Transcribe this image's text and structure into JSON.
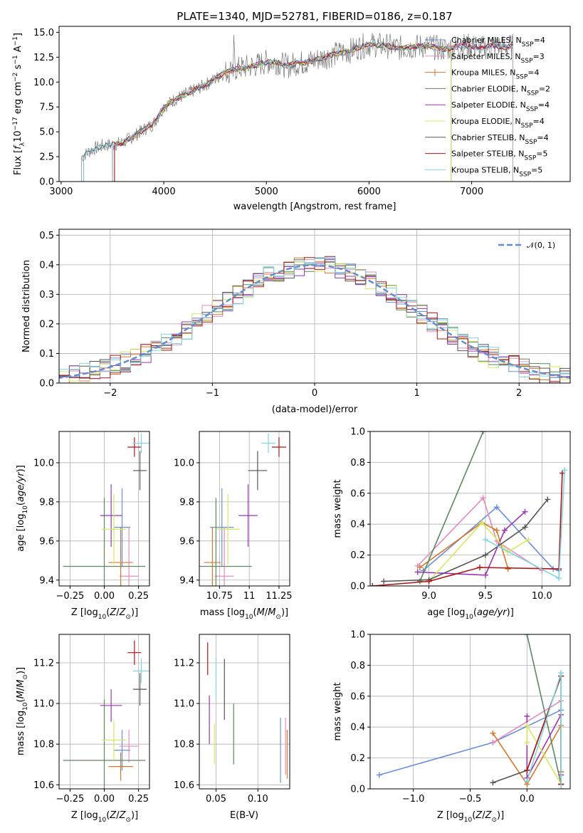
{
  "chart_data": [
    {
      "id": "spectrum",
      "type": "line",
      "title": "PLATE=1340, MJD=52781, FIBERID=0186, z=0.187",
      "xlabel": "wavelength [Angstrom, rest frame]",
      "ylabel": "Flux [f_λ10^-17 erg cm^-2 s^-1 A^-1]",
      "xlim": [
        2980,
        7960
      ],
      "ylim": [
        0,
        15.6
      ],
      "xticks": [
        3000,
        4000,
        5000,
        6000,
        7000
      ],
      "yticks": [
        0.0,
        2.5,
        5.0,
        7.5,
        10.0,
        12.5,
        15.0
      ],
      "legend": "top-right",
      "series": [
        {
          "name": "Chabrier MILES, N_SSP=4",
          "color": "#6a8fd8"
        },
        {
          "name": "Salpeter MILES, N_SSP=3",
          "color": "#e58bbf"
        },
        {
          "name": "Kroupa MILES, N_SSP=4",
          "color": "#d9772a"
        },
        {
          "name": "Chabrier ELODIE, N_SSP=2",
          "color": "#5a8a5e"
        },
        {
          "name": "Salpeter ELODIE, N_SSP=4",
          "color": "#9b35b5"
        },
        {
          "name": "Kroupa ELODIE, N_SSP=4",
          "color": "#d6e85e"
        },
        {
          "name": "Chabrier STELIB, N_SSP=4",
          "color": "#555555"
        },
        {
          "name": "Salpeter STELIB, N_SSP=5",
          "color": "#b01515"
        },
        {
          "name": "Kroupa STELIB, N_SSP=5",
          "color": "#7fd6df"
        }
      ],
      "data_curve": {
        "x": [
          3200,
          3300,
          3400,
          3500,
          3600,
          3700,
          3800,
          3900,
          4000,
          4100,
          4200,
          4300,
          4400,
          4500,
          4600,
          4700,
          4800,
          4900,
          5000,
          5100,
          5200,
          5300,
          5400,
          5500,
          5600,
          5700,
          5800,
          5900,
          6000,
          6100,
          6200,
          6300,
          6400,
          6500,
          6600,
          6700,
          6800,
          6900,
          7000,
          7100,
          7200,
          7300,
          7400
        ],
        "y": [
          2.5,
          3.2,
          3.6,
          3.7,
          3.9,
          4.5,
          5.2,
          5.8,
          7.5,
          8.2,
          8.7,
          9.2,
          9.7,
          10.3,
          11.0,
          11.3,
          11.5,
          11.7,
          12.0,
          12.0,
          11.6,
          11.9,
          12.0,
          12.3,
          12.6,
          12.9,
          13.1,
          13.5,
          13.8,
          13.7,
          13.6,
          13.4,
          13.5,
          13.6,
          13.6,
          13.3,
          13.4,
          13.7,
          13.6,
          13.4,
          13.7,
          13.5,
          13.6
        ]
      }
    },
    {
      "id": "residuals",
      "type": "line",
      "xlabel": "(data-model)/error",
      "ylabel": "Normed distribution",
      "xlim": [
        -2.5,
        2.5
      ],
      "ylim": [
        0,
        0.52
      ],
      "xticks": [
        -2,
        -1,
        0,
        1,
        2
      ],
      "xtick_labels": [
        "−2",
        "−1",
        "0",
        "1",
        "2"
      ],
      "yticks": [
        0.0,
        0.1,
        0.2,
        0.3,
        0.4,
        0.5
      ],
      "grid": true,
      "legend": "top-right",
      "gaussian_label": "𝒩(0, 1)",
      "gaussian_color": "#5f8fd0"
    },
    {
      "id": "age-vs-Z",
      "type": "scatter",
      "xlabel": "Z [log10(Z/Z⊙)]",
      "ylabel": "age [log10(age/yr)]",
      "xlim": [
        -0.33,
        0.33
      ],
      "ylim": [
        9.37,
        10.16
      ],
      "xticks": [
        -0.25,
        0.0,
        0.25
      ],
      "xtick_labels": [
        "−0.25",
        "0.00",
        "0.25"
      ],
      "yticks": [
        9.4,
        9.6,
        9.8,
        10.0
      ],
      "grid": true,
      "points": [
        {
          "x": 0.13,
          "xerr": 0.06,
          "y": 9.67,
          "yerr": 0.2,
          "color": "#6a8fd8"
        },
        {
          "x": 0.18,
          "xerr": 0.07,
          "y": 9.42,
          "yerr": 0.25,
          "color": "#e58bbf"
        },
        {
          "x": 0.12,
          "xerr": 0.09,
          "y": 9.49,
          "yerr": 0.18,
          "color": "#d9772a"
        },
        {
          "x": 0.0,
          "xerr": 0.3,
          "y": 9.47,
          "yerr": 0.35,
          "color": "#5a8a5e"
        },
        {
          "x": 0.05,
          "xerr": 0.08,
          "y": 9.73,
          "yerr": 0.16,
          "color": "#9b35b5"
        },
        {
          "x": 0.07,
          "xerr": 0.09,
          "y": 9.66,
          "yerr": 0.18,
          "color": "#d6e85e"
        },
        {
          "x": 0.26,
          "xerr": 0.05,
          "y": 9.96,
          "yerr": 0.1,
          "color": "#555555"
        },
        {
          "x": 0.22,
          "xerr": 0.05,
          "y": 10.08,
          "yerr": 0.05,
          "color": "#b01515"
        },
        {
          "x": 0.27,
          "xerr": 0.06,
          "y": 10.1,
          "yerr": 0.05,
          "color": "#7fd6df"
        }
      ]
    },
    {
      "id": "age-vs-mass",
      "type": "scatter",
      "xlabel": "mass [log10(M/M⊙)]",
      "xlim": [
        10.58,
        11.34
      ],
      "ylim": [
        9.37,
        10.16
      ],
      "xticks": [
        10.75,
        11.0,
        11.25
      ],
      "yticks": [
        9.4,
        9.6,
        9.8,
        10.0
      ],
      "grid": true,
      "points": [
        {
          "x": 10.77,
          "xerr": 0.1,
          "y": 9.67,
          "yerr": 0.2,
          "color": "#6a8fd8"
        },
        {
          "x": 10.79,
          "xerr": 0.08,
          "y": 9.42,
          "yerr": 0.25,
          "color": "#e58bbf"
        },
        {
          "x": 10.69,
          "xerr": 0.07,
          "y": 9.49,
          "yerr": 0.18,
          "color": "#d9772a"
        },
        {
          "x": 10.72,
          "xerr": 0.3,
          "y": 9.47,
          "yerr": 0.35,
          "color": "#5a8a5e"
        },
        {
          "x": 10.99,
          "xerr": 0.08,
          "y": 9.73,
          "yerr": 0.16,
          "color": "#9b35b5"
        },
        {
          "x": 10.82,
          "xerr": 0.1,
          "y": 9.66,
          "yerr": 0.18,
          "color": "#d6e85e"
        },
        {
          "x": 11.07,
          "xerr": 0.08,
          "y": 9.96,
          "yerr": 0.1,
          "color": "#555555"
        },
        {
          "x": 11.25,
          "xerr": 0.06,
          "y": 10.08,
          "yerr": 0.05,
          "color": "#b01515"
        },
        {
          "x": 11.16,
          "xerr": 0.06,
          "y": 10.1,
          "yerr": 0.05,
          "color": "#7fd6df"
        }
      ]
    },
    {
      "id": "weight-vs-age",
      "type": "line",
      "xlabel": "age [log10(age/yr)]",
      "ylabel": "mass weight",
      "xlim": [
        8.48,
        10.25
      ],
      "ylim": [
        0,
        1.0
      ],
      "xticks": [
        9.0,
        9.5,
        10.0
      ],
      "xtick_labels": [
        "9.0",
        "9.5",
        "10.0"
      ],
      "yticks": [
        0.0,
        0.2,
        0.4,
        0.6,
        0.8,
        1.0
      ],
      "grid": true,
      "series": [
        {
          "color": "#6a8fd8",
          "x": [
            8.95,
            9.6,
            10.1,
            10.15
          ],
          "y": [
            0.1,
            0.51,
            0.11,
            0.1
          ]
        },
        {
          "color": "#e58bbf",
          "x": [
            8.9,
            9.48,
            9.6,
            10.0
          ],
          "y": [
            0.13,
            0.57,
            0.29,
            0.1
          ]
        },
        {
          "color": "#d9772a",
          "x": [
            8.92,
            9.47,
            9.6,
            9.7
          ],
          "y": [
            0.12,
            0.41,
            0.36,
            0.11
          ]
        },
        {
          "color": "#5a8a5e",
          "x": [
            8.92,
            9.48
          ],
          "y": [
            0.03,
            1.0
          ]
        },
        {
          "color": "#9b35b5",
          "x": [
            8.9,
            9.5,
            9.67,
            9.85
          ],
          "y": [
            0.09,
            0.07,
            0.36,
            0.48
          ]
        },
        {
          "color": "#d6e85e",
          "x": [
            9.0,
            9.47,
            9.7,
            9.88
          ],
          "y": [
            0.03,
            0.41,
            0.22,
            0.3
          ]
        },
        {
          "color": "#555555",
          "x": [
            8.6,
            9.0,
            9.5,
            9.85,
            10.05
          ],
          "y": [
            0.03,
            0.04,
            0.2,
            0.38,
            0.56
          ]
        },
        {
          "color": "#b01515",
          "x": [
            8.5,
            9.0,
            9.45,
            10.15,
            10.18
          ],
          "y": [
            0.0,
            0.03,
            0.12,
            0.11,
            0.73
          ]
        },
        {
          "color": "#7fd6df",
          "x": [
            9.5,
            10.15,
            10.2
          ],
          "y": [
            0.3,
            0.05,
            0.75
          ]
        }
      ]
    },
    {
      "id": "mass-vs-Z",
      "type": "scatter",
      "xlabel": "Z [log10(Z/Z⊙)]",
      "ylabel": "mass [log10(M/M⊙)]",
      "xlim": [
        -0.33,
        0.33
      ],
      "ylim": [
        10.58,
        11.34
      ],
      "xticks": [
        -0.25,
        0.0,
        0.25
      ],
      "xtick_labels": [
        "−0.25",
        "0.00",
        "0.25"
      ],
      "yticks": [
        10.6,
        10.8,
        11.0,
        11.2
      ],
      "grid": true,
      "points": [
        {
          "x": 0.13,
          "xerr": 0.06,
          "y": 10.77,
          "yerr": 0.1,
          "color": "#6a8fd8"
        },
        {
          "x": 0.18,
          "xerr": 0.07,
          "y": 10.79,
          "yerr": 0.08,
          "color": "#e58bbf"
        },
        {
          "x": 0.12,
          "xerr": 0.09,
          "y": 10.69,
          "yerr": 0.07,
          "color": "#d9772a"
        },
        {
          "x": 0.0,
          "xerr": 0.3,
          "y": 10.72,
          "yerr": 0.3,
          "color": "#5a8a5e"
        },
        {
          "x": 0.05,
          "xerr": 0.08,
          "y": 10.99,
          "yerr": 0.08,
          "color": "#9b35b5"
        },
        {
          "x": 0.07,
          "xerr": 0.09,
          "y": 10.82,
          "yerr": 0.1,
          "color": "#d6e85e"
        },
        {
          "x": 0.26,
          "xerr": 0.05,
          "y": 11.07,
          "yerr": 0.08,
          "color": "#555555"
        },
        {
          "x": 0.22,
          "xerr": 0.05,
          "y": 11.25,
          "yerr": 0.06,
          "color": "#b01515"
        },
        {
          "x": 0.27,
          "xerr": 0.06,
          "y": 11.16,
          "yerr": 0.06,
          "color": "#7fd6df"
        }
      ]
    },
    {
      "id": "mass-vs-ebv",
      "type": "scatter",
      "xlabel": "E(B-V)",
      "xlim": [
        0.03,
        0.138
      ],
      "ylim": [
        10.58,
        11.34
      ],
      "xticks": [
        0.05,
        0.1
      ],
      "xtick_labels": [
        "0.05",
        "0.10"
      ],
      "yticks": [
        10.6,
        10.8,
        11.0,
        11.2
      ],
      "grid": true,
      "points": [
        {
          "x": 0.127,
          "y": 10.77,
          "yerr": 0.16,
          "color": "#6a8fd8"
        },
        {
          "x": 0.133,
          "y": 10.79,
          "yerr": 0.14,
          "color": "#e58bbf"
        },
        {
          "x": 0.135,
          "y": 10.75,
          "yerr": 0.12,
          "color": "#d9772a"
        },
        {
          "x": 0.071,
          "y": 10.85,
          "yerr": 0.15,
          "color": "#5a8a5e"
        },
        {
          "x": 0.042,
          "y": 10.92,
          "yerr": 0.12,
          "color": "#9b35b5"
        },
        {
          "x": 0.048,
          "y": 10.8,
          "yerr": 0.1,
          "color": "#d6e85e"
        },
        {
          "x": 0.06,
          "y": 11.07,
          "yerr": 0.15,
          "color": "#555555"
        },
        {
          "x": 0.04,
          "y": 11.22,
          "yerr": 0.08,
          "color": "#b01515"
        },
        {
          "x": 0.05,
          "y": 11.12,
          "yerr": 0.1,
          "color": "#7fd6df"
        }
      ]
    },
    {
      "id": "weight-vs-Z",
      "type": "line",
      "xlabel": "Z [log10(Z/Z⊙)]",
      "ylabel": "mass weight",
      "xlim": [
        -1.38,
        0.38
      ],
      "ylim": [
        0,
        1.0
      ],
      "xticks": [
        -1.0,
        -0.5,
        0.0
      ],
      "xtick_labels": [
        "−1.0",
        "−0.5",
        "0.0"
      ],
      "yticks": [
        0.0,
        0.2,
        0.4,
        0.6,
        0.8,
        1.0
      ],
      "grid": true,
      "series": [
        {
          "color": "#6a8fd8",
          "x": [
            -1.3,
            -0.3,
            0.3
          ],
          "y": [
            0.09,
            0.3,
            0.51
          ]
        },
        {
          "color": "#e58bbf",
          "x": [
            -0.3,
            0.3,
            0.3
          ],
          "y": [
            0.3,
            0.57,
            0.11
          ]
        },
        {
          "color": "#d9772a",
          "x": [
            -0.3,
            0.0,
            0.3,
            0.3
          ],
          "y": [
            0.36,
            0.03,
            0.41,
            0.11
          ]
        },
        {
          "color": "#5a8a5e",
          "x": [
            0.0,
            0.3
          ],
          "y": [
            1.0,
            0.03
          ]
        },
        {
          "color": "#9b35b5",
          "x": [
            0.0,
            0.0,
            0.3,
            0.3
          ],
          "y": [
            0.47,
            0.07,
            0.48,
            0.09
          ]
        },
        {
          "color": "#d6e85e",
          "x": [
            0.0,
            0.0,
            0.3
          ],
          "y": [
            0.3,
            0.41,
            0.03
          ]
        },
        {
          "color": "#555555",
          "x": [
            -0.3,
            0.0,
            0.3,
            0.3
          ],
          "y": [
            0.04,
            0.12,
            0.73,
            0.03
          ]
        },
        {
          "color": "#b01515",
          "x": [
            0.0,
            0.3,
            0.3
          ],
          "y": [
            0.12,
            0.73,
            0.03
          ]
        },
        {
          "color": "#7fd6df",
          "x": [
            0.0,
            0.3,
            0.3
          ],
          "y": [
            0.05,
            0.75,
            0.0
          ]
        }
      ]
    }
  ]
}
